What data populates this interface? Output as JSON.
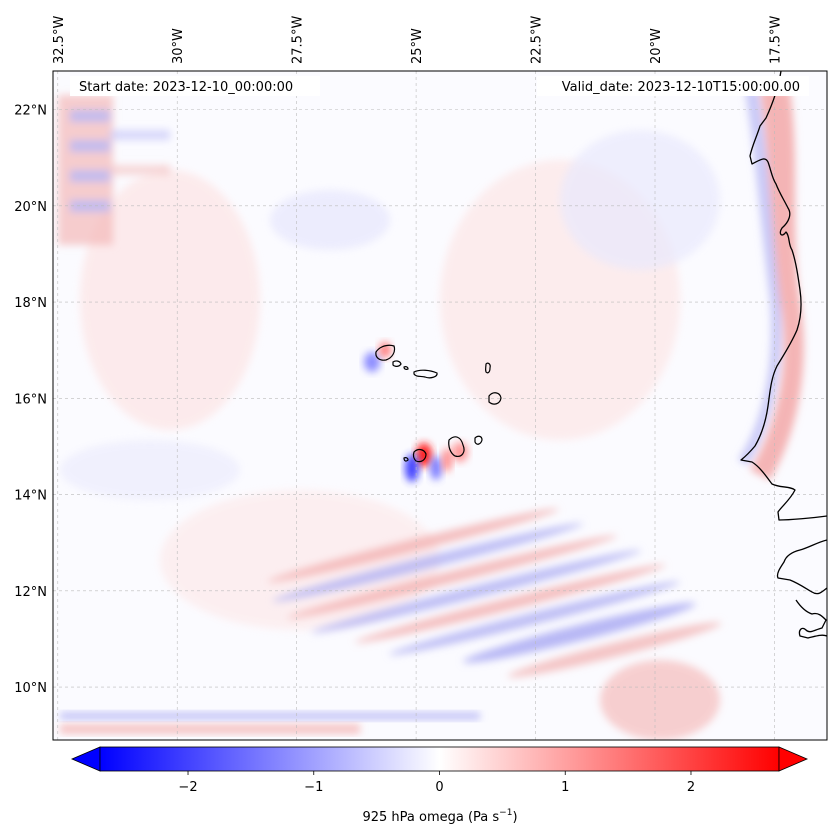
{
  "map": {
    "start_date_text": "Start date: 2023-12-10_00:00:00",
    "valid_date_text": "Valid_date: 2023-12-10T15:00:00.00",
    "lon_ticks": [
      {
        "value": -32.5,
        "label": "32.5°W"
      },
      {
        "value": -30,
        "label": "30°W"
      },
      {
        "value": -27.5,
        "label": "27.5°W"
      },
      {
        "value": -25,
        "label": "25°W"
      },
      {
        "value": -22.5,
        "label": "22.5°W"
      },
      {
        "value": -20,
        "label": "20°W"
      },
      {
        "value": -17.5,
        "label": "17.5°W"
      }
    ],
    "lat_ticks": [
      {
        "value": 22,
        "label": "22°N"
      },
      {
        "value": 20,
        "label": "20°N"
      },
      {
        "value": 18,
        "label": "18°N"
      },
      {
        "value": 16,
        "label": "16°N"
      },
      {
        "value": 14,
        "label": "14°N"
      },
      {
        "value": 12,
        "label": "12°N"
      },
      {
        "value": 10,
        "label": "10°N"
      }
    ],
    "lon_range": [
      -32.6,
      -16.4
    ],
    "lat_range": [
      8.9,
      22.8
    ],
    "gridlines": "on (dashed, light grey)",
    "colormap": "bwr",
    "colors": {
      "negative": "#0000ff",
      "zero": "#ffffff",
      "positive": "#ff0000",
      "coastline": "#000000",
      "grid": "#bbbbbb"
    }
  },
  "colorbar": {
    "label_text": "925 hPa omega (Pa s",
    "label_exp": "−1",
    "label_close": ")",
    "min": -2.7,
    "max": 2.7,
    "extend": "both",
    "ticks": [
      {
        "value": -2,
        "label": "−2"
      },
      {
        "value": -1,
        "label": "−1"
      },
      {
        "value": 0,
        "label": "0"
      },
      {
        "value": 1,
        "label": "1"
      },
      {
        "value": 2,
        "label": "2"
      }
    ]
  }
}
